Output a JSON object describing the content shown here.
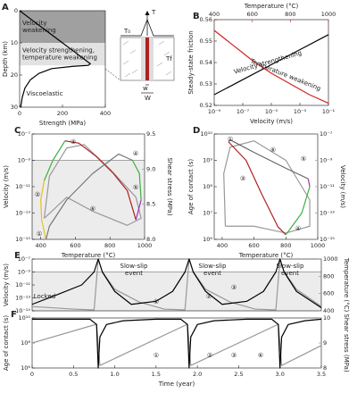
{
  "chart_data": [
    {
      "label": "A",
      "type": "line",
      "xlabel": "Strength (MPa)",
      "ylabel": "Depth (km)",
      "xlim": [
        0,
        400
      ],
      "xticks": [
        0,
        200,
        400
      ],
      "ylim": [
        0,
        30
      ],
      "yreverse": true,
      "yticks": [
        0,
        10,
        20,
        30
      ],
      "zones": [
        {
          "label": [
            "Velocity",
            "weakening"
          ],
          "from": 0,
          "to": 10,
          "color": "#a0a0a0"
        },
        {
          "label": [
            "Velocity strengthening,",
            "temperature weakening"
          ],
          "from": 10,
          "to": 17,
          "color": "#e2e2e2"
        }
      ],
      "annotations": [
        "Viscoelastic"
      ],
      "series": [
        {
          "color": "#000000",
          "x": [
            0,
            60,
            120,
            180,
            240,
            300,
            330,
            320,
            250,
            150,
            90,
            50,
            25,
            12,
            5
          ],
          "values": [
            0,
            3,
            6,
            9,
            12,
            15,
            16.5,
            17,
            17.3,
            18,
            19.5,
            21.5,
            24,
            27,
            30
          ]
        }
      ]
    },
    {
      "label": "B",
      "type": "line",
      "xlabel": "Velocity (m/s)",
      "ylabel": "Steady-state friction",
      "x2label": "Temperature (°C)",
      "x2color": "#d62020",
      "xlim": [
        1e-09,
        0.1
      ],
      "xlog": true,
      "xticks": [
        {
          "value": 1e-09,
          "label": "10⁻⁹"
        },
        {
          "value": 1e-07,
          "label": "10⁻⁷"
        },
        {
          "value": 1e-05,
          "label": "10⁻⁵"
        },
        {
          "value": 0.001,
          "label": "10⁻³"
        },
        {
          "value": 0.1,
          "label": "10⁻¹"
        }
      ],
      "ylim": [
        0.52,
        0.56
      ],
      "yticks": [
        0.52,
        0.53,
        0.54,
        0.55,
        0.56
      ],
      "x2lim": [
        400,
        1000
      ],
      "x2ticks": [
        400,
        600,
        800,
        1000
      ],
      "annotations": [
        "Velocity strengthening",
        "Temperature weakening"
      ],
      "series": [
        {
          "color": "#000000",
          "x": [
            1e-09,
            1e-07,
            1e-05,
            0.001,
            0.1
          ],
          "values": [
            0.525,
            0.532,
            0.539,
            0.546,
            0.553
          ]
        },
        {
          "color": "#d62020",
          "axis": "x2",
          "x": [
            400,
            500,
            600,
            700,
            800,
            900,
            1000
          ],
          "values": [
            0.555,
            0.548,
            0.541,
            0.535,
            0.53,
            0.525,
            0.521
          ]
        }
      ]
    },
    {
      "label": "C",
      "type": "line",
      "xlabel": "Temperature (°C)",
      "ylabel": "Velocity (m/s)",
      "y2label": "Shear stress (MPa)",
      "xlim": [
        350,
        1000
      ],
      "xticks": [
        400,
        600,
        800,
        1000
      ],
      "ylim": [
        1e-15,
        1e-07
      ],
      "ylog": true,
      "yticks": [
        {
          "value": 1e-15,
          "label": "10⁻¹⁵"
        },
        {
          "value": 1e-13,
          "label": "10⁻¹³"
        },
        {
          "value": 1e-11,
          "label": "10⁻¹¹"
        },
        {
          "value": 1e-09,
          "label": "10⁻⁹"
        },
        {
          "value": 1e-07,
          "label": "10⁻⁷"
        }
      ],
      "y2lim": [
        8,
        9.5
      ],
      "y2ticks": [
        {
          "value": 8,
          "label": "8.0"
        },
        8.5,
        {
          "value": 9,
          "label": "9.0"
        },
        9.5
      ],
      "threshold": 1e-09,
      "annotations": [
        "①",
        "②",
        "③",
        "④",
        "⑤",
        "⑥"
      ],
      "series": [
        {
          "color": "#999999",
          "axis": "y2",
          "x": [
            420,
            450,
            550,
            650,
            800,
            950,
            980,
            900,
            700,
            550,
            420
          ],
          "values": [
            8.3,
            8.9,
            9.3,
            9.35,
            9.0,
            8.6,
            8.3,
            8.2,
            8.4,
            8.6,
            8.3
          ]
        },
        {
          "color": "#e8c020",
          "x": [
            430,
            405,
            400,
            420
          ],
          "values": [
            1e-15,
            3e-14,
            1e-12,
            3e-11
          ]
        },
        {
          "color": "#3cb040",
          "x": [
            420,
            470,
            540
          ],
          "values": [
            3e-11,
            1e-09,
            3e-08
          ]
        },
        {
          "color": "#b02020",
          "x": [
            540,
            620,
            720,
            820,
            900,
            950
          ],
          "values": [
            3e-08,
            2e-08,
            2e-09,
            1e-10,
            5e-12,
            3e-14
          ]
        },
        {
          "color": "#a030b0",
          "x": [
            950,
            980
          ],
          "values": [
            3e-14,
            1e-12
          ]
        },
        {
          "color": "#3cb040",
          "x": [
            980,
            970,
            930
          ],
          "values": [
            1e-12,
            1e-10,
            1e-09
          ]
        },
        {
          "color": "#777777",
          "x": [
            930,
            850,
            700,
            550,
            450,
            430
          ],
          "values": [
            1e-09,
            3e-09,
            1e-10,
            1e-12,
            1e-14,
            1e-15
          ]
        }
      ]
    },
    {
      "label": "D",
      "type": "line",
      "xlabel": "Temperature (°C)",
      "ylabel": "Age of contact (s)",
      "y2label": "Velocity (m/s)",
      "xlim": [
        350,
        1000
      ],
      "xticks": [
        400,
        600,
        800,
        1000
      ],
      "ylim": [
        1000000.0,
        10000000000.0
      ],
      "ylog": true,
      "yticks": [
        {
          "value": 1000000.0,
          "label": "10⁶"
        },
        {
          "value": 10000000.0,
          "label": "10⁷"
        },
        {
          "value": 100000000.0,
          "label": "10⁸"
        },
        {
          "value": 1000000000.0,
          "label": "10⁹"
        },
        {
          "value": 10000000000.0,
          "label": "10¹⁰"
        }
      ],
      "y2lim": [
        1e-15,
        1e-07
      ],
      "y2log": true,
      "y2ticks": [
        {
          "value": 1e-15,
          "label": "10⁻¹⁵"
        },
        {
          "value": 1e-13,
          "label": "10⁻¹³"
        },
        {
          "value": 1e-11,
          "label": "10⁻¹¹"
        },
        {
          "value": 1e-09,
          "label": "10⁻⁹"
        },
        {
          "value": 1e-07,
          "label": "10⁻⁷"
        }
      ],
      "annotations": [
        "①",
        "③",
        "④",
        "⑤",
        "⑥"
      ],
      "series": [
        {
          "color": "#999999",
          "axis": "y2",
          "x": [
            420,
            410,
            450,
            600,
            800,
            950,
            950,
            800,
            600,
            420
          ],
          "values": [
            1e-14,
            1e-10,
            1e-08,
            3e-08,
            1e-09,
            1e-12,
            1e-14,
            3e-15,
            1e-14,
            1e-14
          ]
        },
        {
          "color": "#b02020",
          "x": [
            440,
            550,
            650,
            750,
            800
          ],
          "values": [
            5000000000.0,
            1000000000.0,
            50000000.0,
            3000000.0,
            1500000.0
          ]
        },
        {
          "color": "#3cb040",
          "x": [
            800,
            900,
            950
          ],
          "values": [
            1500000.0,
            10000000.0,
            100000000.0
          ]
        },
        {
          "color": "#a030b0",
          "x": [
            950,
            940
          ],
          "values": [
            100000000.0,
            200000000.0
          ]
        },
        {
          "color": "#666666",
          "x": [
            940,
            800,
            600,
            450,
            440
          ],
          "values": [
            200000000.0,
            500000000.0,
            2000000000.0,
            6000000000.0,
            5000000000.0
          ]
        }
      ]
    },
    {
      "label": "E",
      "type": "line",
      "ylabel": "Velocity (m/s)",
      "y2label": "Temperature (°C)",
      "xlim": [
        0,
        3.5
      ],
      "ylim": [
        1e-15,
        1e-07
      ],
      "ylog": true,
      "yticks": [
        {
          "value": 1e-15,
          "label": "10⁻¹⁵"
        },
        {
          "value": 1e-13,
          "label": "10⁻¹³"
        },
        {
          "value": 1e-11,
          "label": "10⁻¹¹"
        },
        {
          "value": 1e-09,
          "label": "10⁻⁹"
        },
        {
          "value": 1e-07,
          "label": "10⁻⁷"
        }
      ],
      "y2lim": [
        400,
        1000
      ],
      "y2ticks": [
        400,
        600,
        800,
        1000
      ],
      "threshold": 1e-09,
      "annotations": [
        [
          "Slow-slip",
          "event"
        ],
        [
          "Slow-slip",
          "event"
        ],
        [
          "Slow-slip",
          "event"
        ],
        "Locked",
        "①",
        "②",
        "③"
      ],
      "series": [
        {
          "color": "#999999",
          "axis": "y2",
          "x": [
            0,
            0.5,
            0.75,
            0.8,
            0.85,
            1.0,
            1.3,
            1.6,
            1.85,
            1.9,
            1.95,
            2.1,
            2.4,
            2.7,
            2.95,
            3.0,
            3.05,
            3.2,
            3.5
          ],
          "values": [
            450,
            420,
            410,
            1000,
            850,
            650,
            500,
            420,
            410,
            1000,
            850,
            650,
            500,
            420,
            410,
            1000,
            850,
            650,
            450
          ]
        },
        {
          "color": "#000000",
          "x": [
            0,
            0.3,
            0.6,
            0.75,
            0.8,
            0.85,
            1.0,
            1.2,
            1.5,
            1.7,
            1.85,
            1.9,
            1.95,
            2.1,
            2.3,
            2.6,
            2.8,
            2.95,
            3.0,
            3.05,
            3.2,
            3.5
          ],
          "values": [
            1e-14,
            3e-13,
            1e-11,
            1e-09,
            1e-07,
            1e-09,
            1e-12,
            1e-14,
            3e-14,
            1e-12,
            1e-09,
            1e-07,
            1e-09,
            1e-12,
            1e-14,
            3e-14,
            1e-12,
            1e-09,
            1e-07,
            1e-09,
            1e-12,
            3e-15
          ]
        }
      ]
    },
    {
      "label": "F",
      "type": "line",
      "xlabel": "Time (year)",
      "ylabel": "Age of contact (s)",
      "y2label": "Shear stress (MPa)",
      "xlim": [
        0,
        3.5
      ],
      "xticks": [
        0,
        0.5,
        {
          "value": 1,
          "label": "1.0"
        },
        1.5,
        {
          "value": 2,
          "label": "2.0"
        },
        2.5,
        {
          "value": 3,
          "label": "3.0"
        },
        3.5
      ],
      "ylim": [
        1000000.0,
        10000000000.0
      ],
      "ylog": true,
      "yticks": [
        {
          "value": 1000000.0,
          "label": "10⁶"
        },
        {
          "value": 100000000.0,
          "label": "10⁸"
        },
        {
          "value": 10000000000.0,
          "label": "10¹⁰"
        }
      ],
      "y2lim": [
        8,
        10
      ],
      "y2ticks": [
        8,
        9,
        10
      ],
      "annotations": [
        "①",
        "②",
        "③",
        "⑥"
      ],
      "series": [
        {
          "color": "#999999",
          "axis": "y2",
          "x": [
            0,
            0.78,
            0.82,
            1.88,
            1.92,
            2.98,
            3.02,
            3.5
          ],
          "values": [
            9.0,
            9.75,
            8.1,
            9.75,
            8.1,
            9.75,
            8.1,
            8.9
          ]
        },
        {
          "color": "#000000",
          "x": [
            0,
            0.7,
            0.78,
            0.8,
            0.82,
            0.9,
            1.1,
            1.5,
            1.8,
            1.88,
            1.9,
            1.92,
            2.0,
            2.2,
            2.6,
            2.9,
            2.98,
            3.0,
            3.02,
            3.1,
            3.3,
            3.5
          ],
          "values": [
            8000000000.0,
            8000000000.0,
            3000000000.0,
            1000000.0,
            300000000.0,
            3000000000.0,
            6000000000.0,
            8000000000.0,
            8000000000.0,
            3000000000.0,
            1000000.0,
            300000000.0,
            3000000000.0,
            6000000000.0,
            8000000000.0,
            8000000000.0,
            3000000000.0,
            1000000.0,
            300000000.0,
            3000000000.0,
            6000000000.0,
            8000000000.0
          ]
        }
      ]
    }
  ],
  "diagram": {
    "labels": [
      "T",
      "T₀",
      "Tf",
      "w",
      "W"
    ]
  }
}
